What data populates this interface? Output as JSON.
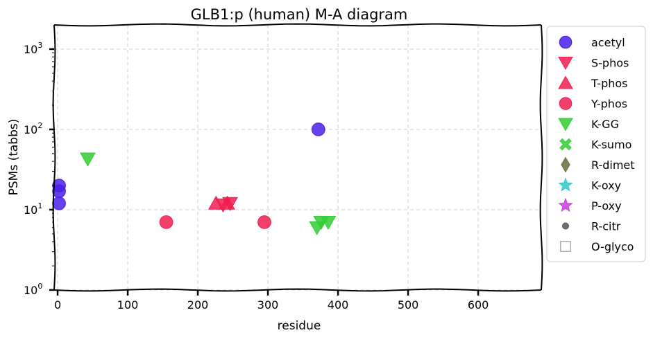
{
  "chart_data": {
    "type": "scatter",
    "title": "GLB1:p (human) M-A diagram",
    "xlabel": "residue",
    "ylabel": "PSMs (tabbs)",
    "xlim": [
      -5,
      690
    ],
    "ylim": [
      1,
      2000
    ],
    "yscale": "log",
    "grid": true,
    "legend_position": "right-outside-top",
    "x_ticks": [
      0,
      100,
      200,
      300,
      400,
      500,
      600
    ],
    "x_tick_labels": [
      "0",
      "100",
      "200",
      "300",
      "400",
      "500",
      "600"
    ],
    "y_ticks": [
      1,
      10,
      100,
      1000
    ],
    "y_tick_labels": [
      {
        "base": "10",
        "exp": "0"
      },
      {
        "base": "10",
        "exp": "1"
      },
      {
        "base": "10",
        "exp": "2"
      },
      {
        "base": "10",
        "exp": "3"
      }
    ],
    "series": [
      {
        "name": "acetyl",
        "marker": "circle",
        "color": "#4b1ee6",
        "points": [
          [
            2,
            20
          ],
          [
            2,
            17
          ],
          [
            2,
            12
          ],
          [
            372,
            100
          ]
        ]
      },
      {
        "name": "S-phos",
        "marker": "triangle-down",
        "color": "#f01e50",
        "points": [
          [
            246,
            12
          ],
          [
            236,
            11.5
          ]
        ]
      },
      {
        "name": "T-phos",
        "marker": "triangle-up",
        "color": "#f01e50",
        "points": [
          [
            226,
            12
          ],
          [
            242,
            12
          ]
        ]
      },
      {
        "name": "Y-phos",
        "marker": "circle",
        "color": "#f01e50",
        "points": [
          [
            155,
            7
          ],
          [
            295,
            7
          ]
        ]
      },
      {
        "name": "K-GG",
        "marker": "triangle-down",
        "color": "#32cd32",
        "points": [
          [
            43,
            43
          ],
          [
            370,
            6
          ],
          [
            376,
            7
          ],
          [
            386,
            7
          ]
        ]
      },
      {
        "name": "K-sumo",
        "marker": "x-filled",
        "color": "#32cd32",
        "points": []
      },
      {
        "name": "R-dimet",
        "marker": "diamond",
        "color": "#6b6b3a",
        "points": []
      },
      {
        "name": "K-oxy",
        "marker": "star",
        "color": "#32c8c8",
        "points": []
      },
      {
        "name": "P-oxy",
        "marker": "star",
        "color": "#c83cdc",
        "points": []
      },
      {
        "name": "R-citr",
        "marker": "small-circle",
        "color": "#555555",
        "points": []
      },
      {
        "name": "O-glyco",
        "marker": "square-open",
        "color": "#999999",
        "points": []
      }
    ]
  }
}
